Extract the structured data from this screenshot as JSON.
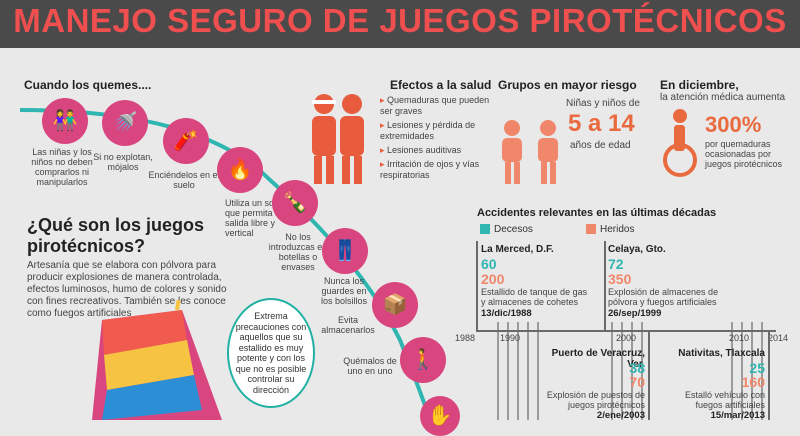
{
  "title": "MANEJO SEGURO DE JUEGOS PIROTÉCNICOS",
  "when_burn": {
    "heading": "Cuando los quemes....",
    "steps": [
      {
        "label": "Las niñas y los niños no deben comprarlos ni manipularlos",
        "icon": "kids-icon"
      },
      {
        "label": "Si no explotan, mójalos",
        "icon": "watering-can-icon"
      },
      {
        "label": "Enciéndelos en el suelo",
        "icon": "firecracker-icon"
      },
      {
        "label": "Utiliza un soporte que permita su salida libre y vertical",
        "icon": "person-lighting-icon"
      },
      {
        "label": "No los introduzcas en botellas o envases",
        "icon": "bottle-icon"
      },
      {
        "label": "Nunca los guardes en los bolsillos",
        "icon": "pocket-icon"
      },
      {
        "label": "Evita almacenarlos",
        "icon": "box-icon"
      },
      {
        "label": "Quémalos de uno en uno",
        "icon": "walking-person-icon"
      }
    ]
  },
  "what_are": {
    "heading": "¿Qué son los juegos pirotécnicos?",
    "text": "Artesanía que se elabora con pólvora para producir explosiones de manera controlada, efectos luminosos, humo de colores y sonido con fines recreativos. También se les conoce como fuegos artificiales"
  },
  "callout": "Extrema precauciones con aquellos que su estallido es muy potente y con los que no es posible controlar su dirección",
  "health": {
    "heading": "Efectos a la salud",
    "items": [
      "Quemaduras que pueden ser graves",
      "Lesiones y pérdida de extremidades",
      "Lesiones auditivas",
      "Irritación de ojos y vías respiratorias"
    ]
  },
  "risk": {
    "heading": "Grupos en mayor riesgo",
    "line1": "Niñas y niños de",
    "big": "5 a 14",
    "line2": "años de edad"
  },
  "december": {
    "heading": "En diciembre,",
    "sub": "la atención médica aumenta",
    "big": "300%",
    "text": "por quemaduras ocasionadas por juegos pirotécnicos"
  },
  "accidents": {
    "heading": "Accidentes relevantes en las últimas décadas",
    "legend_deaths": "Decesos",
    "legend_injured": "Heridos",
    "colors": {
      "deaths": "#2fb6b0",
      "injured": "#f0866a"
    },
    "ticks": [
      "1988",
      "1990",
      "2000",
      "2010",
      "2014"
    ],
    "events": [
      {
        "place": "La Merced, D.F.",
        "deaths": "60",
        "injured": "200",
        "desc": "Estallido de tanque de gas y almacenes de cohetes",
        "date": "13/dic/1988"
      },
      {
        "place": "Celaya, Gto.",
        "deaths": "72",
        "injured": "350",
        "desc": "Explosión de almacenes de pólvora y fuegos artificiales",
        "date": "26/sep/1999"
      },
      {
        "place": "Puerto de Veracruz, Ver.",
        "deaths": "38",
        "injured": "70",
        "desc": "Explosión de puestos de juegos pirotécnicos",
        "date": "2/ene/2003"
      },
      {
        "place": "Nativitas, Tlaxcala",
        "deaths": "25",
        "injured": "160",
        "desc": "Estalló vehículo con fuegos artificiales",
        "date": "15/mar/2013"
      }
    ]
  }
}
